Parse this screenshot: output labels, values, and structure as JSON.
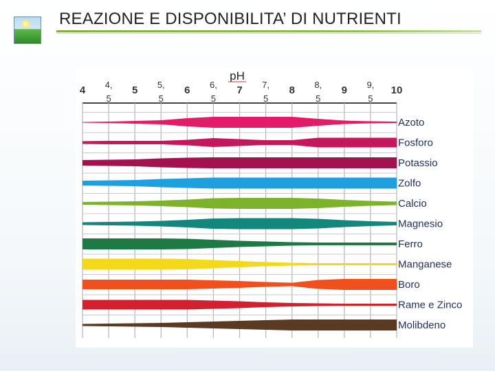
{
  "header": {
    "title": "REAZIONE E DISPONIBILITA’ DI NUTRIENTI",
    "logo_icon": "meadow-logo-icon"
  },
  "chart_data": {
    "type": "band",
    "title": "",
    "xlabel": "pH",
    "xlim": [
      4,
      10
    ],
    "x_ticks": [
      "4",
      "4,\n5",
      "5",
      "5,\n5",
      "6",
      "6,\n5",
      "7",
      "7,\n5",
      "8",
      "8,\n5",
      "9",
      "9,\n5",
      "10"
    ],
    "grid": true,
    "series": [
      {
        "name": "Azoto",
        "color": "#e21c66",
        "width_at_ph": [
          [
            4.0,
            1
          ],
          [
            4.5,
            2
          ],
          [
            5.0,
            4
          ],
          [
            5.5,
            6
          ],
          [
            6.0,
            12
          ],
          [
            6.5,
            16
          ],
          [
            7.0,
            16
          ],
          [
            7.5,
            16
          ],
          [
            8.0,
            16
          ],
          [
            8.5,
            10
          ],
          [
            9.0,
            5
          ],
          [
            9.5,
            3
          ],
          [
            10.0,
            2
          ]
        ]
      },
      {
        "name": "Fosforo",
        "color": "#c4185a",
        "width_at_ph": [
          [
            4.0,
            4
          ],
          [
            4.5,
            5
          ],
          [
            5.0,
            5
          ],
          [
            5.5,
            5
          ],
          [
            6.0,
            8
          ],
          [
            6.5,
            13
          ],
          [
            7.0,
            10
          ],
          [
            7.5,
            7
          ],
          [
            8.0,
            7
          ],
          [
            8.5,
            14
          ],
          [
            9.0,
            14
          ],
          [
            9.5,
            14
          ],
          [
            10.0,
            14
          ]
        ]
      },
      {
        "name": "Potassio",
        "color": "#a1124e",
        "width_at_ph": [
          [
            4.0,
            8
          ],
          [
            4.5,
            9
          ],
          [
            5.0,
            10
          ],
          [
            5.5,
            13
          ],
          [
            6.0,
            15
          ],
          [
            6.5,
            16
          ],
          [
            7.0,
            16
          ],
          [
            7.5,
            16
          ],
          [
            8.0,
            16
          ],
          [
            8.5,
            16
          ],
          [
            9.0,
            16
          ],
          [
            9.5,
            16
          ],
          [
            10.0,
            16
          ]
        ]
      },
      {
        "name": "Zolfo",
        "color": "#1ea0e0",
        "width_at_ph": [
          [
            4.0,
            7
          ],
          [
            4.5,
            8
          ],
          [
            5.0,
            9
          ],
          [
            5.5,
            12
          ],
          [
            6.0,
            14
          ],
          [
            6.5,
            16
          ],
          [
            7.0,
            16
          ],
          [
            7.5,
            16
          ],
          [
            8.0,
            16
          ],
          [
            8.5,
            16
          ],
          [
            9.0,
            16
          ],
          [
            9.5,
            16
          ],
          [
            10.0,
            16
          ]
        ]
      },
      {
        "name": "Calcio",
        "color": "#7db32a",
        "width_at_ph": [
          [
            4.0,
            4
          ],
          [
            4.5,
            5
          ],
          [
            5.0,
            6
          ],
          [
            5.5,
            8
          ],
          [
            6.0,
            11
          ],
          [
            6.5,
            15
          ],
          [
            7.0,
            16
          ],
          [
            7.5,
            16
          ],
          [
            8.0,
            16
          ],
          [
            8.5,
            14
          ],
          [
            9.0,
            10
          ],
          [
            9.5,
            7
          ],
          [
            10.0,
            5
          ]
        ]
      },
      {
        "name": "Magnesio",
        "color": "#13877c",
        "width_at_ph": [
          [
            4.0,
            4
          ],
          [
            4.5,
            5
          ],
          [
            5.0,
            6
          ],
          [
            5.5,
            8
          ],
          [
            6.0,
            11
          ],
          [
            6.5,
            15
          ],
          [
            7.0,
            16
          ],
          [
            7.5,
            16
          ],
          [
            8.0,
            16
          ],
          [
            8.5,
            14
          ],
          [
            9.0,
            10
          ],
          [
            9.5,
            7
          ],
          [
            10.0,
            5
          ]
        ]
      },
      {
        "name": "Ferro",
        "color": "#1d7a45",
        "width_at_ph": [
          [
            4.0,
            16
          ],
          [
            4.5,
            16
          ],
          [
            5.0,
            16
          ],
          [
            5.5,
            16
          ],
          [
            6.0,
            15
          ],
          [
            6.5,
            12
          ],
          [
            7.0,
            9
          ],
          [
            7.5,
            7
          ],
          [
            8.0,
            5
          ],
          [
            8.5,
            4
          ],
          [
            9.0,
            4
          ],
          [
            9.5,
            4
          ],
          [
            10.0,
            4
          ]
        ]
      },
      {
        "name": "Manganese",
        "color": "#f3d91a",
        "width_at_ph": [
          [
            4.0,
            16
          ],
          [
            4.5,
            16
          ],
          [
            5.0,
            16
          ],
          [
            5.5,
            16
          ],
          [
            6.0,
            15
          ],
          [
            6.5,
            12
          ],
          [
            7.0,
            9
          ],
          [
            7.5,
            6
          ],
          [
            8.0,
            4
          ],
          [
            8.5,
            3
          ],
          [
            9.0,
            3
          ],
          [
            9.5,
            3
          ],
          [
            10.0,
            3
          ]
        ]
      },
      {
        "name": "Boro",
        "color": "#f0501e",
        "width_at_ph": [
          [
            4.0,
            14
          ],
          [
            4.5,
            14
          ],
          [
            5.0,
            14
          ],
          [
            5.5,
            14
          ],
          [
            6.0,
            14
          ],
          [
            6.5,
            12
          ],
          [
            7.0,
            10
          ],
          [
            7.5,
            7
          ],
          [
            8.0,
            5
          ],
          [
            8.5,
            13
          ],
          [
            9.0,
            16
          ],
          [
            9.5,
            16
          ],
          [
            10.0,
            16
          ]
        ]
      },
      {
        "name": "Rame e Zinco",
        "color": "#d2202e",
        "width_at_ph": [
          [
            4.0,
            14
          ],
          [
            4.5,
            14
          ],
          [
            5.0,
            14
          ],
          [
            5.5,
            14
          ],
          [
            6.0,
            14
          ],
          [
            6.5,
            12
          ],
          [
            7.0,
            10
          ],
          [
            7.5,
            7
          ],
          [
            8.0,
            5
          ],
          [
            8.5,
            4
          ],
          [
            9.0,
            3
          ],
          [
            9.5,
            3
          ],
          [
            10.0,
            3
          ]
        ]
      },
      {
        "name": "Molibdeno",
        "color": "#5b3a22",
        "width_at_ph": [
          [
            4.0,
            3
          ],
          [
            4.5,
            4
          ],
          [
            5.0,
            5
          ],
          [
            5.5,
            6
          ],
          [
            6.0,
            8
          ],
          [
            6.5,
            10
          ],
          [
            7.0,
            12
          ],
          [
            7.5,
            14
          ],
          [
            8.0,
            16
          ],
          [
            8.5,
            16
          ],
          [
            9.0,
            16
          ],
          [
            9.5,
            16
          ],
          [
            10.0,
            16
          ]
        ]
      }
    ]
  }
}
